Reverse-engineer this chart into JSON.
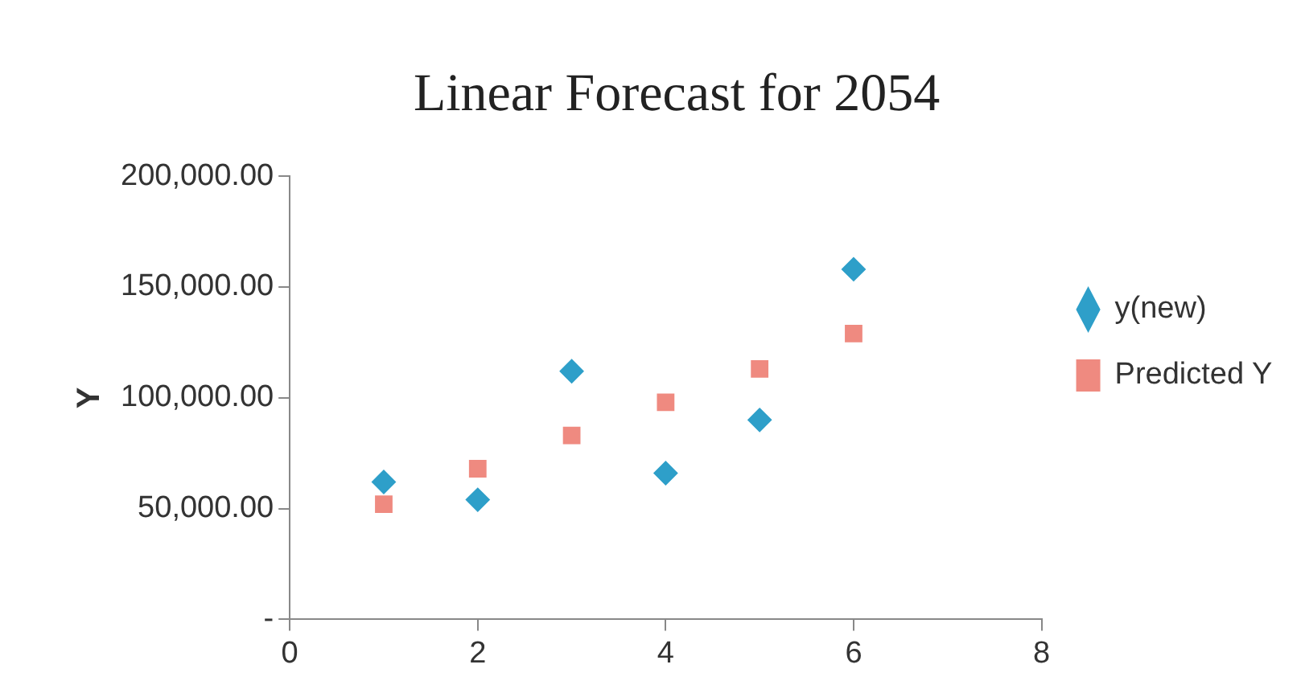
{
  "chart_data": {
    "type": "scatter",
    "title": "Linear Forecast for 2054",
    "ylabel": "Y",
    "series": [
      {
        "name": "y(new)",
        "color": "#2e9fc9",
        "marker": "diamond",
        "x": [
          1,
          2,
          3,
          4,
          5,
          6
        ],
        "values": [
          62000,
          54000,
          112000,
          66000,
          90000,
          158000
        ]
      },
      {
        "name": "Predicted Y",
        "color": "#ef8a80",
        "marker": "square",
        "x": [
          1,
          2,
          3,
          4,
          5,
          6
        ],
        "values": [
          52000,
          68000,
          83000,
          98000,
          113000,
          129000
        ]
      }
    ],
    "xlim": [
      0,
      8
    ],
    "xticks": [
      0,
      2,
      4,
      6,
      8
    ],
    "ylim": [
      0,
      200000
    ],
    "yticks": [
      {
        "value": 0,
        "label": "-"
      },
      {
        "value": 50000,
        "label": "50,000.00"
      },
      {
        "value": 100000,
        "label": "100,000.00"
      },
      {
        "value": 150000,
        "label": "150,000.00"
      },
      {
        "value": 200000,
        "label": "200,000.00"
      }
    ],
    "grid": false,
    "legend": "right"
  }
}
